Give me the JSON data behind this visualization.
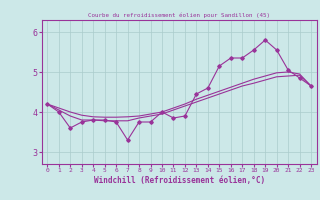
{
  "title": "Courbe du refroidissement éolien pour Sandillon (45)",
  "xlabel": "Windchill (Refroidissement éolien,°C)",
  "bg_color": "#cce8e8",
  "line_color": "#993399",
  "grid_color": "#aacccc",
  "ylim": [
    2.7,
    6.3
  ],
  "xlim": [
    -0.5,
    23.5
  ],
  "yticks": [
    3,
    4,
    5,
    6
  ],
  "xticks": [
    0,
    1,
    2,
    3,
    4,
    5,
    6,
    7,
    8,
    9,
    10,
    11,
    12,
    13,
    14,
    15,
    16,
    17,
    18,
    19,
    20,
    21,
    22,
    23
  ],
  "data_line": [
    4.2,
    4.0,
    3.6,
    3.75,
    3.8,
    3.8,
    3.75,
    3.3,
    3.75,
    3.75,
    4.0,
    3.85,
    3.9,
    4.45,
    4.6,
    5.15,
    5.35,
    5.35,
    5.55,
    5.8,
    5.55,
    5.05,
    4.85,
    4.65
  ],
  "line1": [
    4.2,
    4.05,
    3.9,
    3.8,
    3.8,
    3.78,
    3.78,
    3.78,
    3.85,
    3.9,
    3.95,
    4.05,
    4.15,
    4.25,
    4.35,
    4.45,
    4.55,
    4.65,
    4.72,
    4.8,
    4.88,
    4.9,
    4.92,
    4.65
  ],
  "line2": [
    4.2,
    4.1,
    4.0,
    3.92,
    3.88,
    3.87,
    3.87,
    3.88,
    3.9,
    3.95,
    4.0,
    4.1,
    4.2,
    4.32,
    4.42,
    4.52,
    4.62,
    4.72,
    4.82,
    4.9,
    4.98,
    5.0,
    4.95,
    4.65
  ]
}
